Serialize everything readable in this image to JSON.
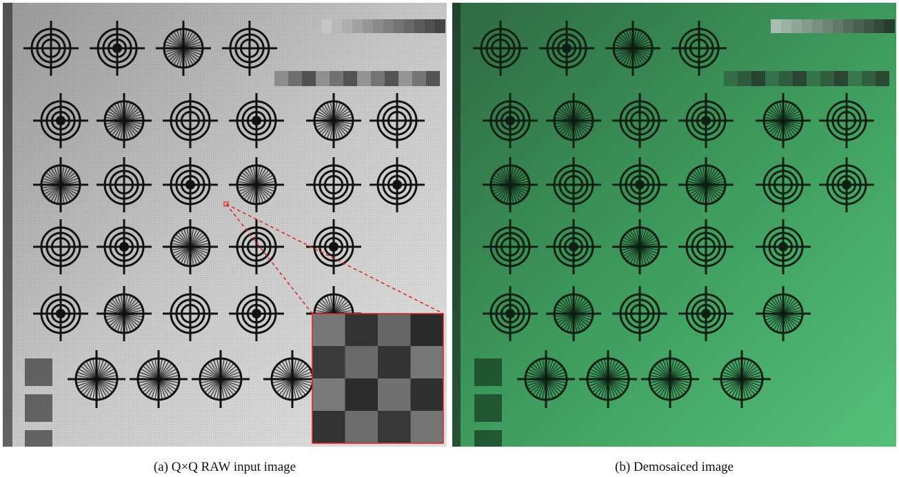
{
  "figure": {
    "panels": [
      {
        "caption": "(a) Q×Q RAW input image"
      },
      {
        "caption": "(b) Demosaiced image"
      }
    ]
  }
}
